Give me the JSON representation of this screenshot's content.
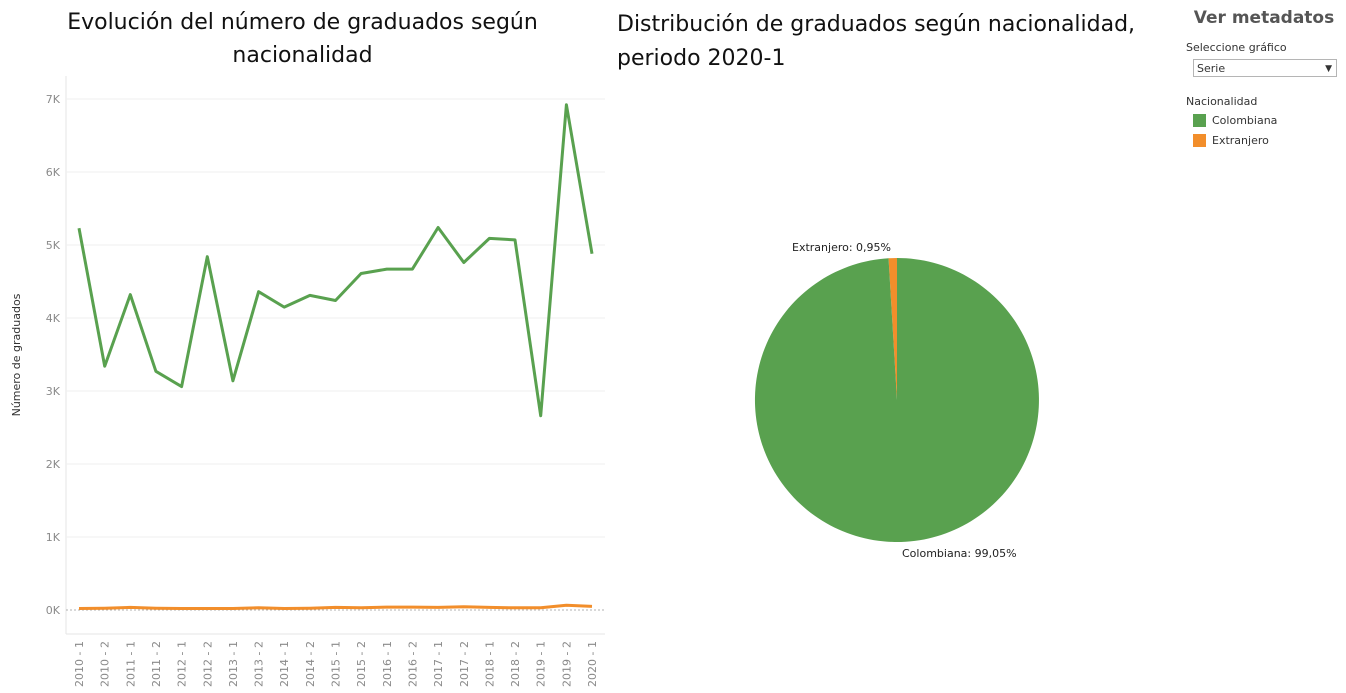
{
  "line_chart": {
    "title": "Evolución del número de graduados según nacionalidad",
    "ylabel": "Número de graduados"
  },
  "pie_chart": {
    "title": "Distribución de graduados según nacionalidad, periodo 2020-1"
  },
  "panel": {
    "metadata_link": "Ver metadatos",
    "select_label": "Seleccione gráfico",
    "select_value": "Serie",
    "legend_title": "Nacionalidad"
  },
  "chart_data": [
    {
      "type": "line",
      "title": "Evolución del número de graduados según nacionalidad",
      "xlabel": "",
      "ylabel": "Número de graduados",
      "categories": [
        "2010 - 1",
        "2010 - 2",
        "2011 - 1",
        "2011 - 2",
        "2012 - 1",
        "2012 - 2",
        "2013 - 1",
        "2013 - 2",
        "2014 - 1",
        "2014 - 2",
        "2015 - 1",
        "2015 - 2",
        "2016 - 1",
        "2016 - 2",
        "2017 - 1",
        "2017 - 2",
        "2018 - 1",
        "2018 - 2",
        "2019 - 1",
        "2019 - 2",
        "2020 - 1"
      ],
      "yticks": [
        "0K",
        "1K",
        "2K",
        "3K",
        "4K",
        "5K",
        "6K",
        "7K"
      ],
      "ylim": [
        0,
        7000
      ],
      "grid": true,
      "series": [
        {
          "name": "Colombiana",
          "color": "#59a14f",
          "values": [
            5230,
            3340,
            4320,
            3270,
            3060,
            4840,
            3140,
            4360,
            4150,
            4310,
            4240,
            4610,
            4670,
            4670,
            5240,
            4760,
            5090,
            5070,
            2660,
            6920,
            4880
          ]
        },
        {
          "name": "Extranjero",
          "color": "#f28e2b",
          "values": [
            20,
            25,
            35,
            25,
            20,
            20,
            20,
            30,
            20,
            25,
            35,
            30,
            40,
            40,
            35,
            45,
            35,
            30,
            30,
            65,
            50
          ]
        }
      ]
    },
    {
      "type": "pie",
      "title": "Distribución de graduados según nacionalidad, periodo 2020-1",
      "slices": [
        {
          "name": "Colombiana",
          "value": 99.05,
          "label": "Colombiana: 99,05%",
          "color": "#59a14f"
        },
        {
          "name": "Extranjero",
          "value": 0.95,
          "label": "Extranjero: 0,95%",
          "color": "#f28e2b"
        }
      ]
    }
  ]
}
